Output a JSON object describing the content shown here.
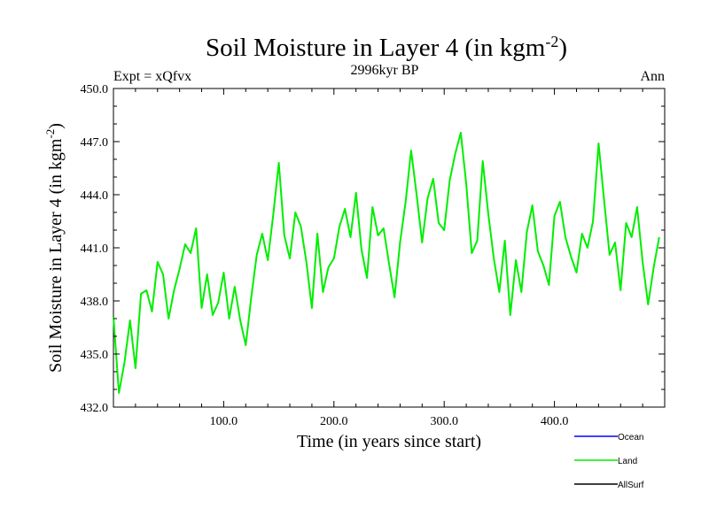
{
  "chart_data": {
    "type": "line",
    "title": "Soil Moisture in Layer 4 (in kgm",
    "title_sup": "-2",
    "title_close": ")",
    "subtitle": "2996kyr BP",
    "left_note": "Expt = xQfvx",
    "right_note": "Ann",
    "xlabel": "Time (in years since start)",
    "ylabel": "Soil Moisture in Layer 4 (in kgm",
    "ylabel_sup": "-2",
    "ylabel_close": ")",
    "xlim": [
      0,
      500
    ],
    "ylim": [
      432,
      450
    ],
    "xticks": [
      100,
      200,
      300,
      400
    ],
    "xtick_labels": [
      "100.0",
      "200.0",
      "300.0",
      "400.0"
    ],
    "yticks": [
      432,
      435,
      438,
      441,
      444,
      447,
      450
    ],
    "ytick_labels": [
      "432.0",
      "435.0",
      "438.0",
      "441.0",
      "444.0",
      "447.0",
      "450.0"
    ],
    "legend": [
      {
        "name": "Ocean",
        "color": "#0000ff"
      },
      {
        "name": "Land",
        "color": "#00ee00"
      },
      {
        "name": "AllSurf",
        "color": "#000000"
      }
    ],
    "series": [
      {
        "name": "Land",
        "color": "#00ee00",
        "x_start": 0,
        "x_step": 5,
        "values": [
          437.1,
          432.8,
          434.5,
          436.9,
          434.2,
          438.4,
          438.6,
          437.4,
          440.2,
          439.5,
          437.0,
          438.6,
          439.8,
          441.2,
          440.7,
          442.1,
          437.6,
          439.5,
          437.2,
          437.9,
          439.6,
          437.0,
          438.8,
          436.9,
          435.5,
          438.2,
          440.6,
          441.8,
          440.3,
          442.9,
          445.8,
          441.7,
          440.4,
          443.0,
          442.2,
          440.2,
          437.6,
          441.8,
          438.5,
          439.9,
          440.4,
          442.2,
          443.2,
          441.6,
          444.1,
          440.9,
          439.3,
          443.3,
          441.7,
          442.1,
          440.1,
          438.2,
          441.3,
          443.6,
          446.5,
          444.0,
          441.3,
          443.8,
          444.9,
          442.4,
          442.0,
          444.8,
          446.3,
          447.5,
          444.6,
          440.7,
          441.4,
          445.9,
          442.9,
          440.4,
          438.5,
          441.4,
          437.2,
          440.3,
          438.5,
          441.9,
          443.4,
          440.8,
          440.0,
          438.9,
          442.8,
          443.6,
          441.6,
          440.5,
          439.6,
          441.8,
          441.0,
          442.5,
          446.9,
          443.7,
          440.6,
          441.3,
          438.6,
          442.4,
          441.6,
          443.3,
          440.2,
          437.8,
          439.9,
          441.6
        ]
      },
      {
        "name": "Ocean",
        "color": "#0000ff",
        "values": []
      },
      {
        "name": "AllSurf",
        "color": "#000000",
        "values": []
      }
    ]
  }
}
